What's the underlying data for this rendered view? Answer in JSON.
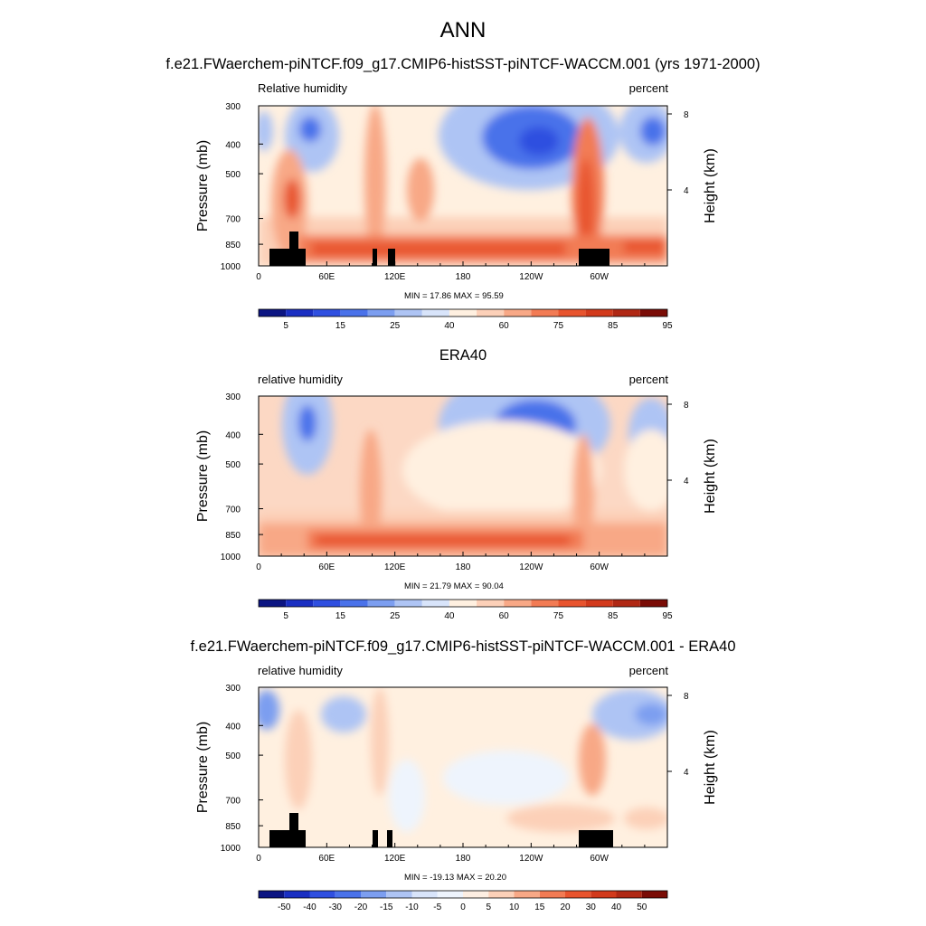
{
  "main_title": "ANN",
  "panels": [
    {
      "title": "f.e21.FWaerchem-piNTCF.f09_g17.CMIP6-histSST-piNTCF-WACCM.001 (yrs 1971-2000)",
      "left_label": "Relative humidity",
      "right_label": "percent",
      "stats": "MIN = 17.86  MAX = 95.59",
      "topography": true,
      "colorbar": "abs"
    },
    {
      "title": "ERA40",
      "left_label": "relative humidity",
      "right_label": "percent",
      "stats": "MIN = 21.79  MAX = 90.04",
      "topography": false,
      "colorbar": "abs"
    },
    {
      "title": "f.e21.FWaerchem-piNTCF.f09_g17.CMIP6-histSST-piNTCF-WACCM.001 - ERA40",
      "left_label": "relative humidity",
      "right_label": "percent",
      "stats": "MIN = -19.13  MAX = 20.20",
      "topography": true,
      "colorbar": "diff"
    }
  ],
  "chart_data": {
    "type": "heatmap",
    "xlabels": [
      "0",
      "60E",
      "120E",
      "180",
      "120W",
      "60W"
    ],
    "xticks": [
      0,
      60,
      120,
      180,
      240,
      300
    ],
    "xrange": [
      0,
      360
    ],
    "ylabel": "Pressure (mb)",
    "yticks": [
      300,
      400,
      500,
      700,
      850,
      1000
    ],
    "yrange": [
      300,
      1000
    ],
    "ylog": true,
    "y2label": "Height (km)",
    "y2ticks": [
      8,
      4
    ],
    "colorbars": {
      "abs": {
        "labels": [
          "5",
          "15",
          "25",
          "40",
          "60",
          "75",
          "85",
          "95"
        ],
        "colors": [
          "#0c1582",
          "#1a2fc2",
          "#2f4fe0",
          "#4a72ea",
          "#7c9ef0",
          "#aec4f4",
          "#d8e4fa",
          "#fff0e0",
          "#fcd0b8",
          "#f8a886",
          "#f27b54",
          "#e8542e",
          "#d23a1c",
          "#b02814",
          "#7a0c06"
        ]
      },
      "diff": {
        "labels": [
          "-50",
          "-40",
          "-30",
          "-20",
          "-15",
          "-10",
          "-5",
          "0",
          "5",
          "10",
          "15",
          "20",
          "30",
          "40",
          "50"
        ],
        "colors": [
          "#0c1582",
          "#1a2fc2",
          "#2f4fe0",
          "#4a72ea",
          "#7c9ef0",
          "#aec4f4",
          "#d8e4fa",
          "#eef4fd",
          "#fdeee2",
          "#fcd0b8",
          "#f8a886",
          "#f27b54",
          "#e8542e",
          "#d23a1c",
          "#b02814",
          "#7a0c06"
        ]
      }
    }
  }
}
